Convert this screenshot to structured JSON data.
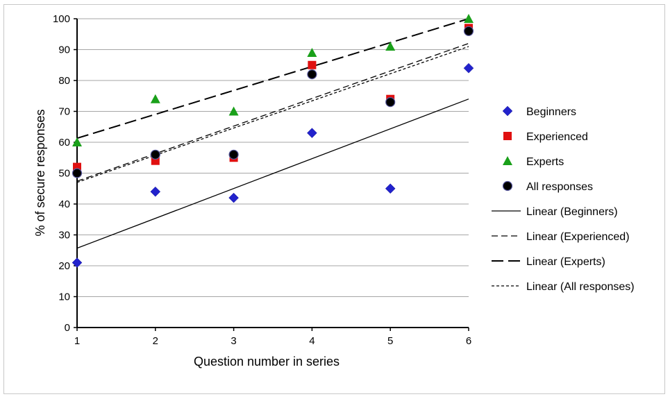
{
  "chart_data": {
    "type": "scatter",
    "title": "",
    "xlabel": "Question number in series",
    "ylabel": "% of secure responses",
    "x": [
      1,
      2,
      3,
      4,
      5,
      6
    ],
    "xlim": [
      1,
      6
    ],
    "ylim": [
      0,
      100
    ],
    "x_ticks": [
      "1",
      "2",
      "3",
      "4",
      "5",
      "6"
    ],
    "y_ticks": [
      "0",
      "10",
      "20",
      "30",
      "40",
      "50",
      "60",
      "70",
      "80",
      "90",
      "100"
    ],
    "grid": "horizontal",
    "legend_position": "right",
    "series": [
      {
        "name": "Beginners",
        "marker": "diamond",
        "color": "#2222cc",
        "values": [
          21,
          44,
          42,
          63,
          45,
          84
        ]
      },
      {
        "name": "Experienced",
        "marker": "square",
        "color": "#e01010",
        "values": [
          52,
          54,
          55,
          85,
          74,
          97
        ]
      },
      {
        "name": "Experts",
        "marker": "triangle",
        "color": "#1aa01a",
        "values": [
          60,
          74,
          70,
          89,
          91,
          100
        ]
      },
      {
        "name": "All responses",
        "marker": "circle",
        "color": "#000000",
        "values": [
          50,
          56,
          56,
          82,
          73,
          96
        ]
      }
    ],
    "trendlines": [
      {
        "name": "Linear (Beginners)",
        "style": "solid",
        "y_at_x1": 25.7,
        "y_at_x6": 74
      },
      {
        "name": "Linear (Experienced)",
        "style": "dashed",
        "y_at_x1": 47.4,
        "y_at_x6": 92
      },
      {
        "name": "Linear (Experts)",
        "style": "longdash",
        "y_at_x1": 61.3,
        "y_at_x6": 100
      },
      {
        "name": "Linear (All responses)",
        "style": "shortdash",
        "y_at_x1": 47,
        "y_at_x6": 91
      }
    ]
  }
}
